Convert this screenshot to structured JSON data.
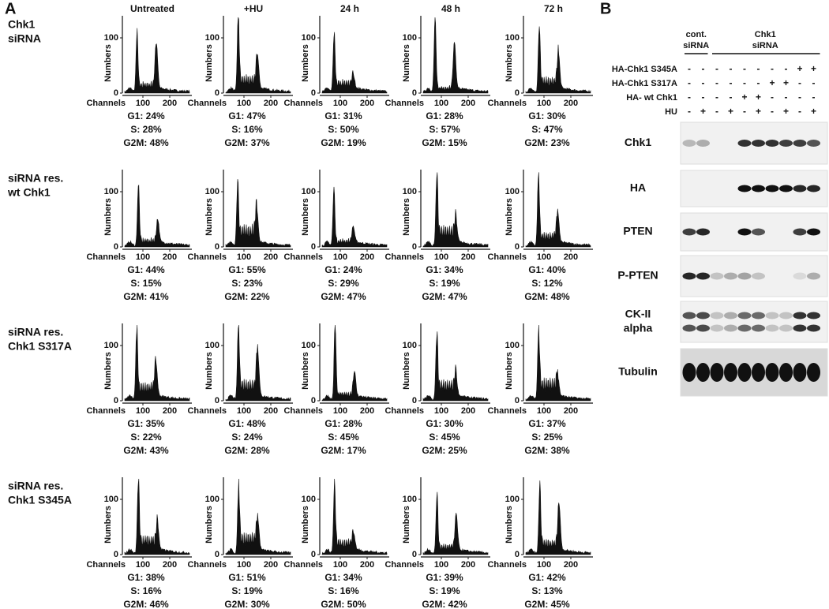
{
  "panel_a": {
    "label": "A",
    "columns": [
      "Untreated",
      "+HU",
      "24 h",
      "48 h",
      "72 h"
    ],
    "y_axis_label": "Numbers",
    "x_axis_label": "Channels",
    "yticks": [
      0,
      100
    ],
    "xticks": [
      100,
      200
    ],
    "rows": [
      {
        "label": [
          "Chk1",
          "siRNA"
        ],
        "cells": [
          [
            "G1: 24%",
            "S: 28%",
            "G2M: 48%"
          ],
          [
            "G1: 47%",
            "S: 16%",
            "G2M: 37%"
          ],
          [
            "G1: 31%",
            "S: 50%",
            "G2M: 19%"
          ],
          [
            "G1: 28%",
            "S: 57%",
            "G2M: 15%"
          ],
          [
            "G1: 30%",
            "S: 47%",
            "G2M: 23%"
          ]
        ]
      },
      {
        "label": [
          "siRNA res.",
          "wt Chk1"
        ],
        "cells": [
          [
            "G1: 44%",
            "S: 15%",
            "G2M: 41%"
          ],
          [
            "G1: 55%",
            "S: 23%",
            "G2M: 22%"
          ],
          [
            "G1: 24%",
            "S: 29%",
            "G2M: 47%"
          ],
          [
            "G1: 34%",
            "S: 19%",
            "G2M: 47%"
          ],
          [
            "G1: 40%",
            "S: 12%",
            "G2M: 48%"
          ]
        ]
      },
      {
        "label": [
          "siRNA res.",
          "Chk1 S317A"
        ],
        "cells": [
          [
            "G1: 35%",
            "S: 22%",
            "G2M: 43%"
          ],
          [
            "G1: 48%",
            "S: 24%",
            "G2M: 28%"
          ],
          [
            "G1: 28%",
            "S: 45%",
            "G2M: 17%"
          ],
          [
            "G1: 30%",
            "S: 45%",
            "G2M: 25%"
          ],
          [
            "G1: 37%",
            "S: 25%",
            "G2M: 38%"
          ]
        ]
      },
      {
        "label": [
          "siRNA res.",
          "Chk1 S345A"
        ],
        "cells": [
          [
            "G1: 38%",
            "S: 16%",
            "G2M: 46%"
          ],
          [
            "G1: 51%",
            "S: 19%",
            "G2M: 30%"
          ],
          [
            "G1: 34%",
            "S: 16%",
            "G2M: 50%"
          ],
          [
            "G1: 39%",
            "S: 19%",
            "G2M: 42%"
          ],
          [
            "G1: 42%",
            "S: 13%",
            "G2M: 45%"
          ]
        ]
      }
    ]
  },
  "panel_b": {
    "label": "B",
    "groups": [
      [
        "cont.",
        "siRNA"
      ],
      [
        "Chk1",
        "siRNA"
      ]
    ],
    "treatments": [
      {
        "name": "HA-Chk1 S345A",
        "lanes": [
          "-",
          "-",
          "-",
          "-",
          "-",
          "-",
          "-",
          "-",
          "+",
          "+"
        ]
      },
      {
        "name": "HA-Chk1 S317A",
        "lanes": [
          "-",
          "-",
          "-",
          "-",
          "-",
          "-",
          "+",
          "+",
          "-",
          "-"
        ]
      },
      {
        "name": "HA- wt Chk1",
        "lanes": [
          "-",
          "-",
          "-",
          "-",
          "+",
          "+",
          "-",
          "-",
          "-",
          "-"
        ]
      },
      {
        "name": "HU",
        "lanes": [
          "-",
          "+",
          "-",
          "+",
          "-",
          "+",
          "-",
          "+",
          "-",
          "+"
        ]
      }
    ],
    "blots": [
      [
        "Chk1"
      ],
      [
        "HA"
      ],
      [
        "PTEN"
      ],
      [
        "P-PTEN"
      ],
      [
        "CK-II",
        "alpha"
      ],
      [
        "Tubulin"
      ]
    ]
  }
}
